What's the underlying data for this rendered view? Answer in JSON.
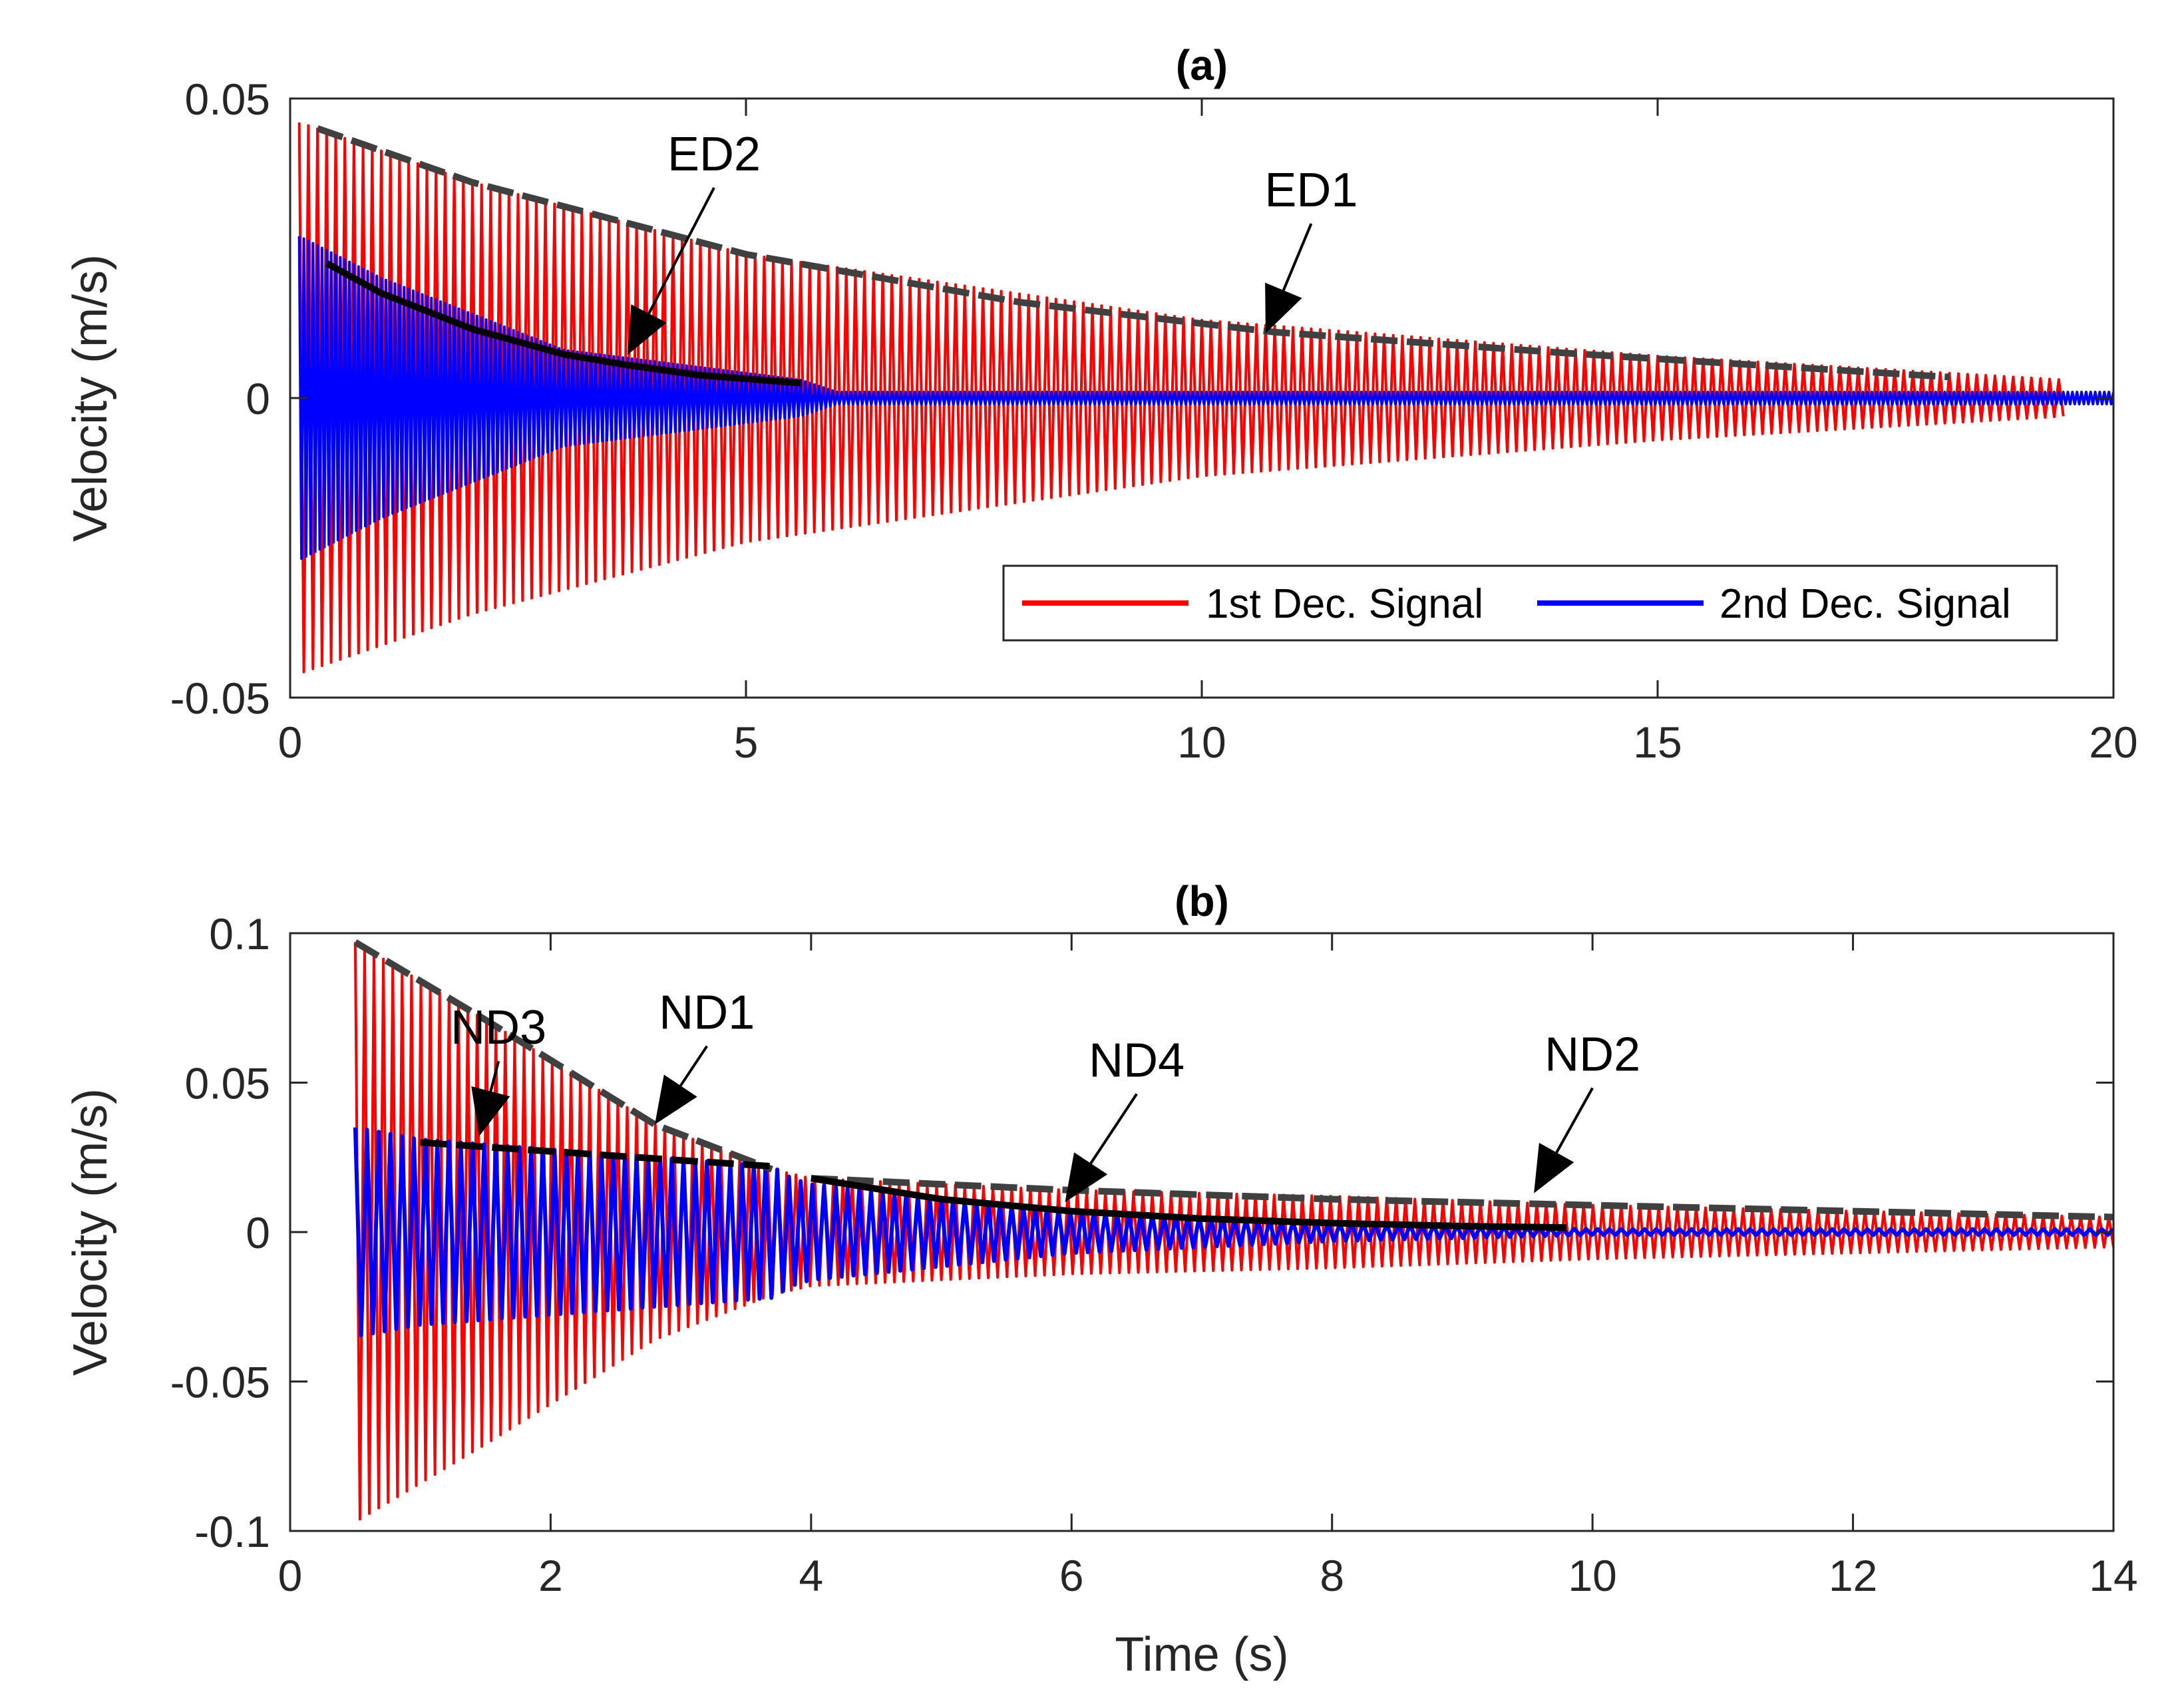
{
  "chart_data": [
    {
      "type": "line",
      "title": "(a)",
      "xlabel": "",
      "ylabel": "Velocity (m/s)",
      "xlim": [
        0,
        20
      ],
      "ylim": [
        -0.05,
        0.05
      ],
      "xticks": [
        0,
        5,
        10,
        15,
        20
      ],
      "yticks": [
        -0.05,
        0,
        0.05
      ],
      "xtick_labels": [
        "0",
        "5",
        "10",
        "15",
        "20"
      ],
      "ytick_labels": [
        "-0.05",
        "0",
        "0.05"
      ],
      "grid": false,
      "legend": {
        "placement": "bottom-right",
        "entries": [
          {
            "name": "1st Dec. Signal",
            "color": "#ff0000"
          },
          {
            "name": "2nd Dec. Signal",
            "color": "#0000ff"
          }
        ]
      },
      "series": [
        {
          "name": "1st Dec. Signal",
          "color": "#ff0000",
          "kind": "decaying-oscillation",
          "envelope": {
            "t": [
              0.1,
              2,
              5,
              10,
              15,
              19.5
            ],
            "amp": [
              0.046,
              0.036,
              0.024,
              0.013,
              0.007,
              0.003
            ]
          }
        },
        {
          "name": "2nd Dec. Signal",
          "color": "#0000ff",
          "kind": "decaying-oscillation",
          "envelope": {
            "t": [
              0.1,
              1,
              3,
              5.6,
              6,
              20
            ],
            "amp": [
              0.027,
              0.02,
              0.008,
              0.003,
              0.001,
              0.001
            ]
          }
        },
        {
          "name": "ED1",
          "color": "#404040",
          "style": "dashed",
          "x": [
            0.3,
            2,
            5,
            8,
            10.8,
            14,
            18.2
          ],
          "y": [
            0.045,
            0.036,
            0.024,
            0.016,
            0.011,
            0.0075,
            0.0035
          ]
        },
        {
          "name": "ED2",
          "color": "#000000",
          "style": "solid",
          "x": [
            0.4,
            1,
            2,
            3,
            3.7,
            4.5,
            5.6
          ],
          "y": [
            0.0225,
            0.0175,
            0.0115,
            0.0073,
            0.0055,
            0.0038,
            0.0025
          ]
        }
      ],
      "annotations": [
        {
          "text": "ED2",
          "points_to": [
            3.7,
            0.0072
          ],
          "text_at": [
            4.65,
            0.038
          ]
        },
        {
          "text": "ED1",
          "points_to": [
            10.7,
            0.0108
          ],
          "text_at": [
            11.2,
            0.032
          ]
        }
      ]
    },
    {
      "type": "line",
      "title": "(b)",
      "xlabel": "Time (s)",
      "ylabel": "Velocity (m/s)",
      "xlim": [
        0,
        14
      ],
      "ylim": [
        -0.1,
        0.1
      ],
      "xticks": [
        0,
        2,
        4,
        6,
        8,
        10,
        12,
        14
      ],
      "yticks": [
        -0.1,
        -0.05,
        0,
        0.05,
        0.1
      ],
      "xtick_labels": [
        "0",
        "2",
        "4",
        "6",
        "8",
        "10",
        "12",
        "14"
      ],
      "ytick_labels": [
        "-0.1",
        "-0.05",
        "0",
        "0.05",
        "0.1"
      ],
      "grid": false,
      "series": [
        {
          "name": "1st Dec. Signal",
          "color": "#ff0000",
          "kind": "decaying-oscillation",
          "envelope": {
            "t": [
              0.5,
              1.5,
              2.8,
              3.7,
              4,
              6,
              8,
              10,
              12,
              14
            ],
            "amp": [
              0.097,
              0.071,
              0.036,
              0.021,
              0.018,
              0.014,
              0.012,
              0.009,
              0.007,
              0.005
            ]
          }
        },
        {
          "name": "2nd Dec. Signal",
          "color": "#0000ff",
          "kind": "decaying-oscillation",
          "envelope": {
            "t": [
              0.5,
              1,
              3.7,
              3.85,
              4,
              6,
              8,
              10,
              14
            ],
            "amp": [
              0.035,
              0.031,
              0.022,
              0.018,
              0.016,
              0.007,
              0.003,
              0.001,
              0.001
            ]
          }
        },
        {
          "name": "ND1",
          "color": "#404040",
          "style": "dashed",
          "x": [
            0.5,
            1.5,
            2.8,
            3.7
          ],
          "y": [
            0.097,
            0.071,
            0.036,
            0.021
          ]
        },
        {
          "name": "ND2",
          "color": "#404040",
          "style": "dashed",
          "x": [
            4,
            6,
            8,
            10,
            12,
            14
          ],
          "y": [
            0.018,
            0.014,
            0.011,
            0.009,
            0.007,
            0.005
          ]
        },
        {
          "name": "ND3",
          "color": "#000000",
          "style": "dashed",
          "x": [
            1,
            2,
            3,
            3.7
          ],
          "y": [
            0.03,
            0.027,
            0.024,
            0.022
          ]
        },
        {
          "name": "ND4",
          "color": "#000000",
          "style": "solid",
          "x": [
            4,
            5,
            6,
            7,
            8,
            9,
            9.8
          ],
          "y": [
            0.018,
            0.011,
            0.007,
            0.0045,
            0.003,
            0.002,
            0.0015
          ]
        }
      ],
      "annotations": [
        {
          "text": "ND1",
          "points_to": [
            2.8,
            0.036
          ],
          "text_at": [
            3.2,
            0.068
          ]
        },
        {
          "text": "ND3",
          "points_to": [
            1.45,
            0.032
          ],
          "text_at": [
            1.6,
            0.063
          ]
        },
        {
          "text": "ND4",
          "points_to": [
            5.95,
            0.01
          ],
          "text_at": [
            6.5,
            0.052
          ]
        },
        {
          "text": "ND2",
          "points_to": [
            9.55,
            0.013
          ],
          "text_at": [
            10.0,
            0.054
          ]
        }
      ]
    }
  ]
}
